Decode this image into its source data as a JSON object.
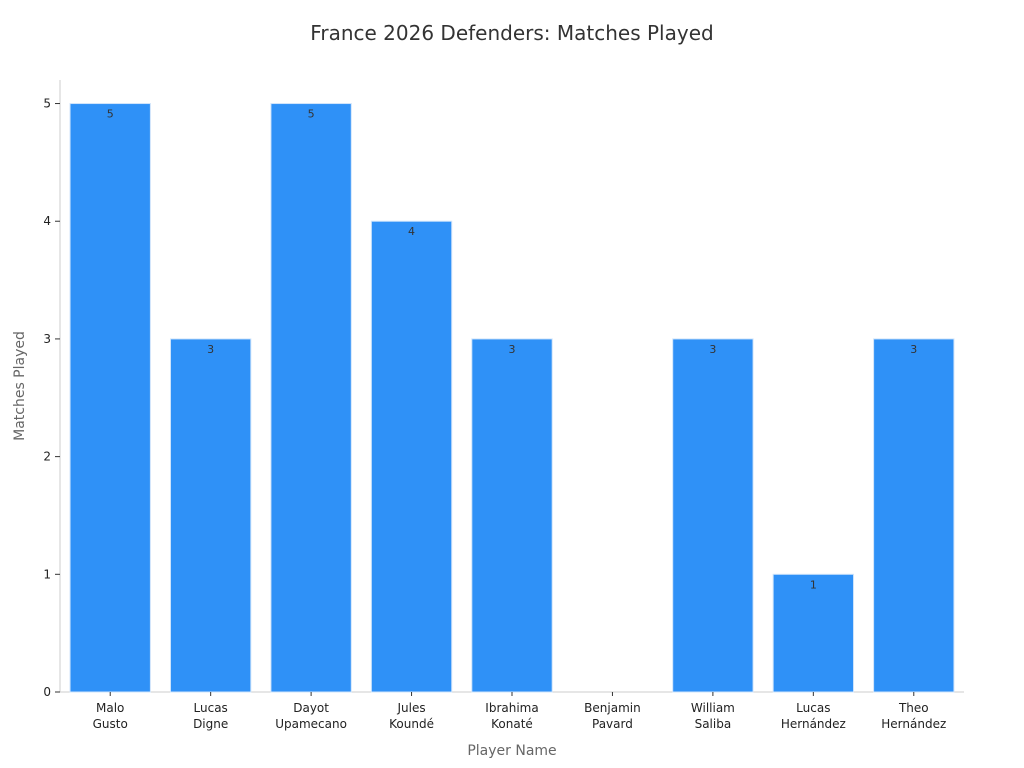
{
  "chart_data": {
    "type": "bar",
    "title": "France 2026 Defenders: Matches Played",
    "xlabel": "Player Name",
    "ylabel": "Matches Played",
    "categories": [
      [
        "Malo",
        "Gusto"
      ],
      [
        "Lucas",
        "Digne"
      ],
      [
        "Dayot",
        "Upamecano"
      ],
      [
        "Jules",
        "Koundé"
      ],
      [
        "Ibrahima",
        "Konaté"
      ],
      [
        "Benjamin",
        "Pavard"
      ],
      [
        "William",
        "Saliba"
      ],
      [
        "Lucas",
        "Hernández"
      ],
      [
        "Theo",
        "Hernández"
      ]
    ],
    "values": [
      5,
      3,
      5,
      4,
      3,
      0,
      3,
      1,
      3
    ],
    "data_labels": [
      "5",
      "3",
      "5",
      "4",
      "3",
      "",
      "3",
      "1",
      "3"
    ],
    "ylim": [
      0,
      5.2
    ],
    "yticks": [
      0,
      1,
      2,
      3,
      4,
      5
    ],
    "bar_color": "#2f91f7",
    "grid": false,
    "legend": "none"
  }
}
